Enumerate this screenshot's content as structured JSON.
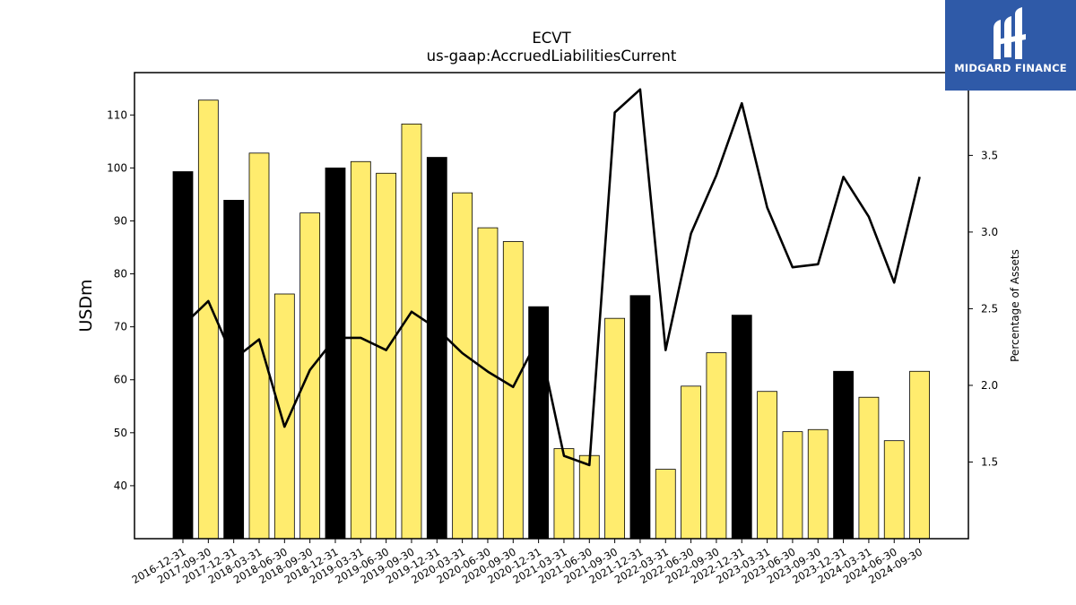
{
  "chart_data": {
    "type": "bar",
    "title": "ECVT",
    "subtitle": "us-gaap:AccruedLiabilitiesCurrent",
    "ylabel": "USDm",
    "y2label": "Percentage of Assets",
    "ylim": [
      30,
      118
    ],
    "y2lim": [
      1.0,
      4.04
    ],
    "yticks": [
      40,
      50,
      60,
      70,
      80,
      90,
      100,
      110
    ],
    "y2ticks": [
      1.5,
      2.0,
      2.5,
      3.0,
      3.5
    ],
    "categories": [
      "2016-12-31",
      "2017-09-30",
      "2017-12-31",
      "2018-03-31",
      "2018-06-30",
      "2018-09-30",
      "2018-12-31",
      "2019-03-31",
      "2019-06-30",
      "2019-09-30",
      "2019-12-31",
      "2020-03-31",
      "2020-06-30",
      "2020-09-30",
      "2020-12-31",
      "2021-03-31",
      "2021-06-30",
      "2021-09-30",
      "2021-12-31",
      "2022-03-31",
      "2022-06-30",
      "2022-09-30",
      "2022-12-31",
      "2023-03-31",
      "2023-06-30",
      "2023-09-30",
      "2023-12-31",
      "2024-03-31",
      "2024-06-30",
      "2024-09-30"
    ],
    "series": [
      {
        "values": [
          99.3,
          112.8,
          93.9,
          102.8,
          76.2,
          91.5,
          100.0,
          101.2,
          99.0,
          108.3,
          102.0,
          95.3,
          88.7,
          86.1,
          73.8,
          47.0,
          45.7,
          71.6,
          75.9,
          43.1,
          58.8,
          65.1,
          72.2,
          57.8,
          50.2,
          50.6,
          61.6,
          56.7,
          48.5,
          61.6
        ],
        "highlight": [
          true,
          false,
          true,
          false,
          false,
          false,
          true,
          false,
          false,
          false,
          true,
          false,
          false,
          false,
          true,
          false,
          false,
          false,
          true,
          false,
          false,
          false,
          true,
          false,
          false,
          false,
          true,
          false,
          false,
          false
        ]
      },
      {
        "axis": "right",
        "type": "line",
        "values": [
          2.39,
          2.55,
          2.17,
          2.3,
          1.73,
          2.1,
          2.31,
          2.31,
          2.23,
          2.48,
          2.37,
          2.21,
          2.09,
          1.99,
          2.31,
          1.54,
          1.48,
          3.78,
          3.93,
          2.23,
          2.99,
          3.37,
          3.84,
          3.16,
          2.77,
          2.79,
          3.36,
          3.1,
          2.67,
          3.36
        ]
      }
    ],
    "colors": {
      "bar": "#ffec6e",
      "highlight": "#000000",
      "line": "#000000",
      "edge": "#000000"
    },
    "grid": false,
    "legend": "none"
  },
  "logo": {
    "text": "MIDGARD FINANCE"
  }
}
